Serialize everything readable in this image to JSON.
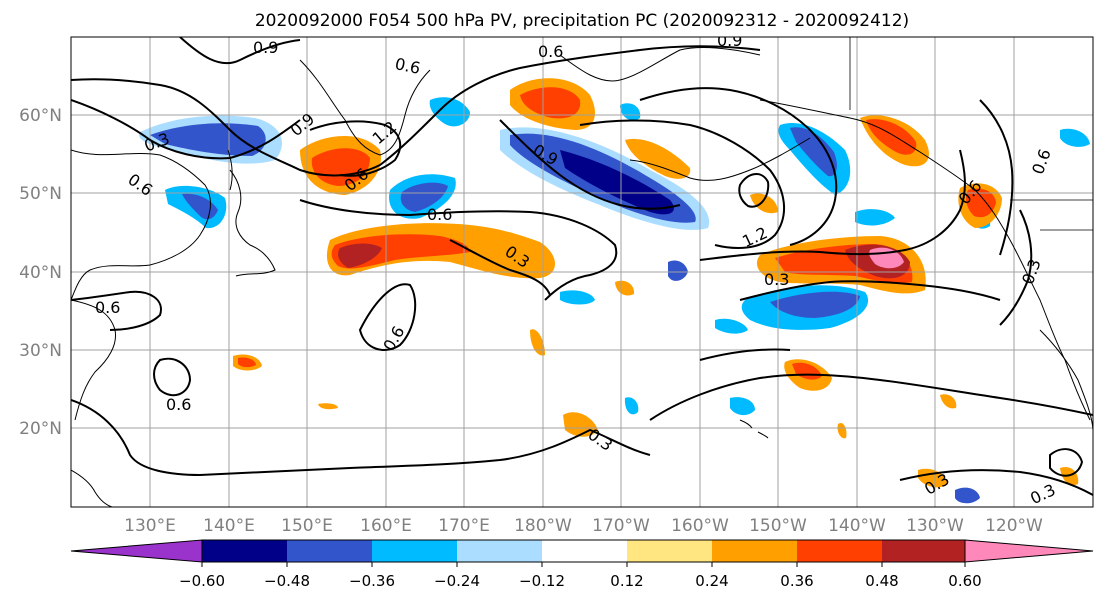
{
  "title": "2020092000 F054 500 hPa PV, precipitation PC (2020092312 - 2020092412)",
  "lat_labels": [
    "60°N",
    "50°N",
    "40°N",
    "30°N",
    "20°N"
  ],
  "lon_labels": [
    "130°E",
    "140°E",
    "150°E",
    "160°E",
    "170°E",
    "180°W",
    "170°W",
    "160°W",
    "150°W",
    "140°W",
    "130°W",
    "120°W"
  ],
  "contour_labels": [
    "0.9",
    "0.6",
    "0.9",
    "0.6",
    "0.3",
    "0.9",
    "1.2",
    "0.6",
    "0.6",
    "0.6",
    "0.9",
    "1.2",
    "0.3",
    "0.3",
    "0.6",
    "0.6",
    "0.6",
    "0.3",
    "0.3",
    "0.3",
    "0.3",
    "0.6",
    "0.6"
  ],
  "colorbar": {
    "colors": [
      "#9933cc",
      "#000088",
      "#3355cc",
      "#00bbff",
      "#aaddff",
      "#ffffff",
      "#ffe680",
      "#ffa000",
      "#ff4000",
      "#b22222",
      "#ff88bb"
    ],
    "tick_labels": [
      "−0.60",
      "−0.48",
      "−0.36",
      "−0.24",
      "−0.12",
      "0.12",
      "0.24",
      "0.36",
      "0.48",
      "0.60"
    ]
  },
  "colors": {
    "land": "#000000",
    "grid": "#a0a0a0",
    "axis_labels": "#808080"
  }
}
